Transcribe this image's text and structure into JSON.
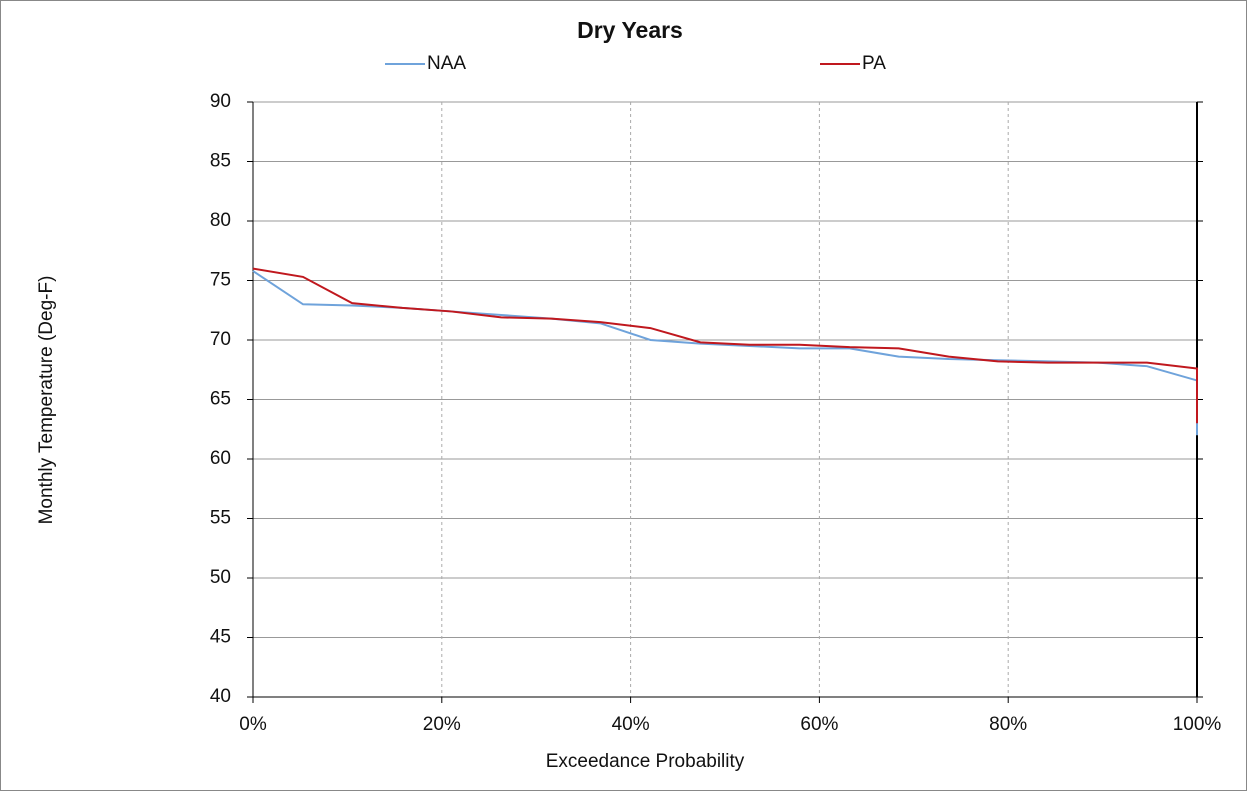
{
  "chart_data": {
    "type": "line",
    "title": "Dry Years",
    "x_label": "Exceedance Probability",
    "y_label": "Monthly Temperature (Deg-F)",
    "x": [
      0,
      5.3,
      10.5,
      15.8,
      21,
      26.3,
      31.6,
      36.8,
      42.1,
      47.4,
      52.6,
      57.9,
      63.2,
      68.4,
      73.7,
      78.9,
      84.2,
      89.5,
      94.7,
      100,
      100
    ],
    "series": [
      {
        "name": "NAA",
        "color": "#6fa3db",
        "values": [
          75.8,
          73,
          72.9,
          72.7,
          72.4,
          72.1,
          71.8,
          71.4,
          70,
          69.7,
          69.5,
          69.3,
          69.3,
          68.6,
          68.4,
          68.3,
          68.2,
          68.1,
          67.8,
          66.6,
          62
        ]
      },
      {
        "name": "PA",
        "color": "#c0181e",
        "values": [
          76,
          75.3,
          73.1,
          72.7,
          72.4,
          71.9,
          71.8,
          71.5,
          71,
          69.8,
          69.6,
          69.6,
          69.4,
          69.3,
          68.6,
          68.2,
          68.1,
          68.1,
          68.1,
          67.6,
          63
        ]
      }
    ],
    "xlim": [
      0,
      100
    ],
    "xticks": [
      {
        "value": 0,
        "label": "0%"
      },
      {
        "value": 20,
        "label": "20%"
      },
      {
        "value": 40,
        "label": "40%"
      },
      {
        "value": 60,
        "label": "60%"
      },
      {
        "value": 80,
        "label": "80%"
      },
      {
        "value": 100,
        "label": "100%"
      }
    ],
    "ylim": [
      40,
      90
    ],
    "yticks": [
      40,
      45,
      50,
      55,
      60,
      65,
      70,
      75,
      80,
      85,
      90
    ],
    "grid": true,
    "legend": "top"
  }
}
